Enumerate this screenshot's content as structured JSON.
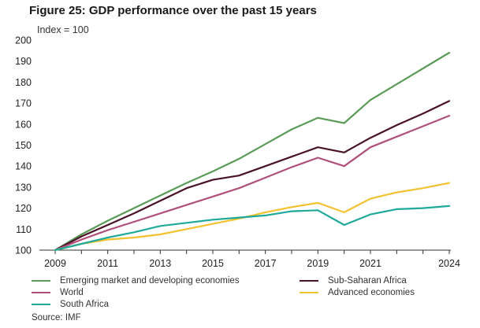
{
  "header": {
    "title": "Figure 25: GDP performance over the past 15 years",
    "subtitle": "Index = 100"
  },
  "source": "Source: IMF",
  "colors": {
    "emerging": "#5b9b58",
    "subsaharan": "#4a1227",
    "world": "#b0507a",
    "advanced": "#f2c230",
    "southafrica": "#1fa99a",
    "axis": "#333333",
    "grid": "#d8d8d8"
  },
  "chart_data": {
    "type": "line",
    "title": "Figure 25: GDP performance over the past 15 years",
    "ylabel": "Index = 100",
    "xlabel": "",
    "ylim": [
      100,
      200
    ],
    "yticks": [
      100,
      110,
      120,
      130,
      140,
      150,
      160,
      170,
      180,
      190,
      200
    ],
    "x": [
      2009,
      2010,
      2011,
      2012,
      2013,
      2014,
      2015,
      2016,
      2017,
      2018,
      2019,
      2020,
      2021,
      2022,
      2023,
      2024
    ],
    "xticks": [
      2009,
      2011,
      2013,
      2015,
      2017,
      2019,
      2021,
      2024
    ],
    "grid": false,
    "legend_position": "bottom",
    "series": [
      {
        "key": "emerging",
        "name": "Emerging market and developing economies",
        "values": [
          100,
          107.5,
          114,
          120,
          126,
          132,
          137.5,
          143.5,
          150.5,
          157.5,
          163,
          160.5,
          171.5,
          179,
          186.5,
          194
        ]
      },
      {
        "key": "subsaharan",
        "name": "Sub-Saharan Africa",
        "values": [
          100,
          106.5,
          112,
          117.5,
          123.5,
          129.5,
          133.5,
          135.5,
          140,
          144.5,
          149,
          146.5,
          153.5,
          159.5,
          165,
          171
        ]
      },
      {
        "key": "world",
        "name": "World",
        "values": [
          100,
          105,
          109.5,
          113.5,
          117.5,
          121.5,
          125.5,
          129.5,
          134.5,
          139.5,
          144,
          140,
          149,
          154,
          159,
          164
        ]
      },
      {
        "key": "advanced",
        "name": "Advanced economies",
        "values": [
          100,
          103,
          105,
          106,
          107.5,
          110,
          112.5,
          115,
          118,
          120.5,
          122.5,
          118,
          124.5,
          127.5,
          129.5,
          132
        ]
      },
      {
        "key": "southafrica",
        "name": "South Africa",
        "values": [
          100,
          103,
          106,
          108.5,
          111.5,
          113,
          114.5,
          115.5,
          116.5,
          118.5,
          119,
          112,
          117,
          119.5,
          120,
          121
        ]
      }
    ]
  }
}
